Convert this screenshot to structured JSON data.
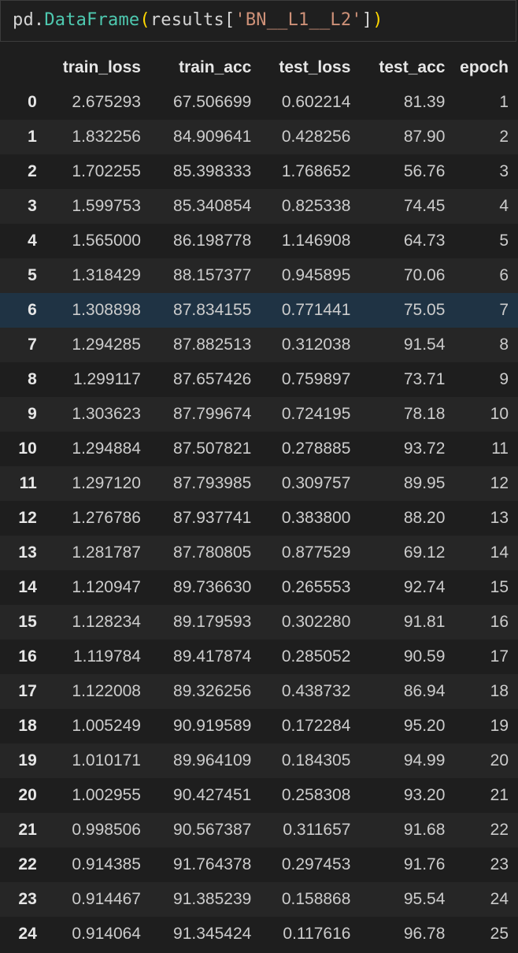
{
  "code": {
    "var": "pd",
    "dot": ".",
    "cls": "DataFrame",
    "open_paren": "(",
    "ident": "results",
    "open_bracket": "[",
    "str": "'BN__L1__L2'",
    "close_bracket": "]",
    "close_paren": ")"
  },
  "table": {
    "columns": [
      "",
      "train_loss",
      "train_acc",
      "test_loss",
      "test_acc",
      "epoch"
    ],
    "highlighted_row": 6,
    "rows": [
      [
        "0",
        "2.675293",
        "67.506699",
        "0.602214",
        "81.39",
        "1"
      ],
      [
        "1",
        "1.832256",
        "84.909641",
        "0.428256",
        "87.90",
        "2"
      ],
      [
        "2",
        "1.702255",
        "85.398333",
        "1.768652",
        "56.76",
        "3"
      ],
      [
        "3",
        "1.599753",
        "85.340854",
        "0.825338",
        "74.45",
        "4"
      ],
      [
        "4",
        "1.565000",
        "86.198778",
        "1.146908",
        "64.73",
        "5"
      ],
      [
        "5",
        "1.318429",
        "88.157377",
        "0.945895",
        "70.06",
        "6"
      ],
      [
        "6",
        "1.308898",
        "87.834155",
        "0.771441",
        "75.05",
        "7"
      ],
      [
        "7",
        "1.294285",
        "87.882513",
        "0.312038",
        "91.54",
        "8"
      ],
      [
        "8",
        "1.299117",
        "87.657426",
        "0.759897",
        "73.71",
        "9"
      ],
      [
        "9",
        "1.303623",
        "87.799674",
        "0.724195",
        "78.18",
        "10"
      ],
      [
        "10",
        "1.294884",
        "87.507821",
        "0.278885",
        "93.72",
        "11"
      ],
      [
        "11",
        "1.297120",
        "87.793985",
        "0.309757",
        "89.95",
        "12"
      ],
      [
        "12",
        "1.276786",
        "87.937741",
        "0.383800",
        "88.20",
        "13"
      ],
      [
        "13",
        "1.281787",
        "87.780805",
        "0.877529",
        "69.12",
        "14"
      ],
      [
        "14",
        "1.120947",
        "89.736630",
        "0.265553",
        "92.74",
        "15"
      ],
      [
        "15",
        "1.128234",
        "89.179593",
        "0.302280",
        "91.81",
        "16"
      ],
      [
        "16",
        "1.119784",
        "89.417874",
        "0.285052",
        "90.59",
        "17"
      ],
      [
        "17",
        "1.122008",
        "89.326256",
        "0.438732",
        "86.94",
        "18"
      ],
      [
        "18",
        "1.005249",
        "90.919589",
        "0.172284",
        "95.20",
        "19"
      ],
      [
        "19",
        "1.010171",
        "89.964109",
        "0.184305",
        "94.99",
        "20"
      ],
      [
        "20",
        "1.002955",
        "90.427451",
        "0.258308",
        "93.20",
        "21"
      ],
      [
        "21",
        "0.998506",
        "90.567387",
        "0.311657",
        "91.68",
        "22"
      ],
      [
        "22",
        "0.914385",
        "91.764378",
        "0.297453",
        "91.76",
        "23"
      ],
      [
        "23",
        "0.914467",
        "91.385239",
        "0.158868",
        "95.54",
        "24"
      ],
      [
        "24",
        "0.914064",
        "91.345424",
        "0.117616",
        "96.78",
        "25"
      ]
    ]
  }
}
